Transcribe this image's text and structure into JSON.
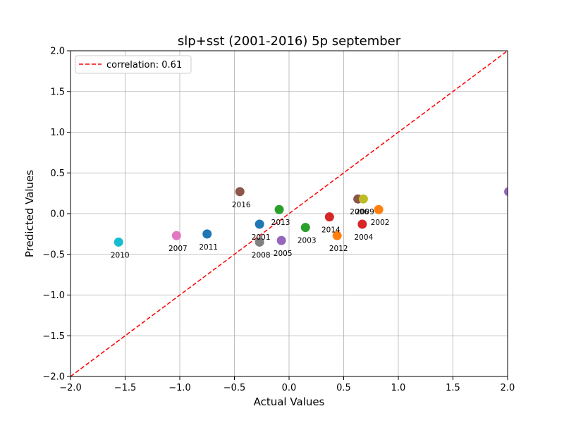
{
  "chart_data": {
    "type": "scatter",
    "title": "slp+sst (2001-2016) 5p september",
    "xlabel": "Actual Values",
    "ylabel": "Predicted Values",
    "xlim": [
      -2.0,
      2.0
    ],
    "ylim": [
      -2.0,
      2.0
    ],
    "xticks": [
      "−2.0",
      "−1.5",
      "−1.0",
      "−0.5",
      "0.0",
      "0.5",
      "1.0",
      "1.5",
      "2.0"
    ],
    "yticks": [
      "−2.0",
      "−1.5",
      "−1.0",
      "−0.5",
      "0.0",
      "0.5",
      "1.0",
      "1.5",
      "2.0"
    ],
    "grid": true,
    "legend": {
      "placement": "top-left",
      "label": "correlation: 0.61"
    },
    "reference_line": {
      "style": "dashed",
      "color": "#ff0000",
      "from": [
        -2.0,
        -2.0
      ],
      "to": [
        2.0,
        2.0
      ]
    },
    "points": [
      {
        "label": "2001",
        "x": -0.27,
        "y": -0.13,
        "color": "#1f77b4"
      },
      {
        "label": "2002",
        "x": 0.82,
        "y": 0.05,
        "color": "#ff7f0e"
      },
      {
        "label": "2003",
        "x": 0.15,
        "y": -0.17,
        "color": "#2ca02c"
      },
      {
        "label": "2004",
        "x": 0.67,
        "y": -0.13,
        "color": "#d62728"
      },
      {
        "label": "2005",
        "x": -0.07,
        "y": -0.33,
        "color": "#9467bd"
      },
      {
        "label": "2006",
        "x": 0.63,
        "y": 0.18,
        "color": "#8c564b"
      },
      {
        "label": "2007",
        "x": -1.03,
        "y": -0.27,
        "color": "#e377c2"
      },
      {
        "label": "2008",
        "x": -0.27,
        "y": -0.35,
        "color": "#7f7f7f"
      },
      {
        "label": "2009",
        "x": 0.68,
        "y": 0.18,
        "color": "#bcbd22"
      },
      {
        "label": "2010",
        "x": -1.56,
        "y": -0.35,
        "color": "#17becf"
      },
      {
        "label": "2011",
        "x": -0.75,
        "y": -0.25,
        "color": "#1f77b4"
      },
      {
        "label": "2012",
        "x": 0.44,
        "y": -0.27,
        "color": "#ff7f0e"
      },
      {
        "label": "2013",
        "x": -0.09,
        "y": 0.05,
        "color": "#2ca02c"
      },
      {
        "label": "2014",
        "x": 0.37,
        "y": -0.04,
        "color": "#d62728"
      },
      {
        "label": "",
        "x": 2.01,
        "y": 0.27,
        "color": "#9467bd"
      },
      {
        "label": "2016",
        "x": -0.45,
        "y": 0.27,
        "color": "#8c564b"
      }
    ]
  }
}
